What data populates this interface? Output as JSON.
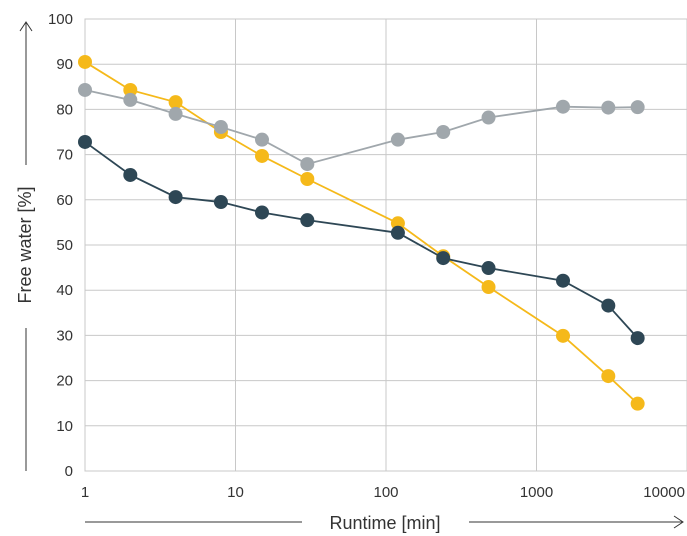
{
  "chart_data": {
    "type": "line",
    "xlabel": "Runtime [min]",
    "ylabel": "Free water [%]",
    "x_scale": "log",
    "xlim": [
      1,
      10000
    ],
    "ylim": [
      0,
      100
    ],
    "x_ticks": [
      "1",
      "10",
      "100",
      "1000",
      "10000"
    ],
    "y_ticks": [
      "0",
      "10",
      "20",
      "30",
      "40",
      "50",
      "60",
      "70",
      "80",
      "90",
      "100"
    ],
    "grid": true,
    "series": [
      {
        "color": "#f5b91a",
        "x": [
          1,
          2,
          4,
          8,
          15,
          30,
          120,
          240,
          480,
          1500,
          3000,
          4700
        ],
        "y": [
          90.5,
          84.3,
          81.6,
          75.0,
          69.7,
          64.6,
          54.8,
          47.5,
          40.7,
          29.9,
          21.0,
          14.9
        ]
      },
      {
        "color": "#a0a7ac",
        "x": [
          1,
          2,
          4,
          8,
          15,
          30,
          120,
          240,
          480,
          1500,
          3000,
          4700
        ],
        "y": [
          84.3,
          82.1,
          79.0,
          76.1,
          73.3,
          67.9,
          73.3,
          75.0,
          78.2,
          80.6,
          80.4,
          80.5
        ]
      },
      {
        "color": "#2e4755",
        "x": [
          1,
          2,
          4,
          8,
          15,
          30,
          120,
          240,
          480,
          1500,
          3000,
          4700
        ],
        "y": [
          72.8,
          65.5,
          60.6,
          59.5,
          57.2,
          55.5,
          52.7,
          47.1,
          44.9,
          42.1,
          36.6,
          29.4
        ]
      }
    ]
  }
}
